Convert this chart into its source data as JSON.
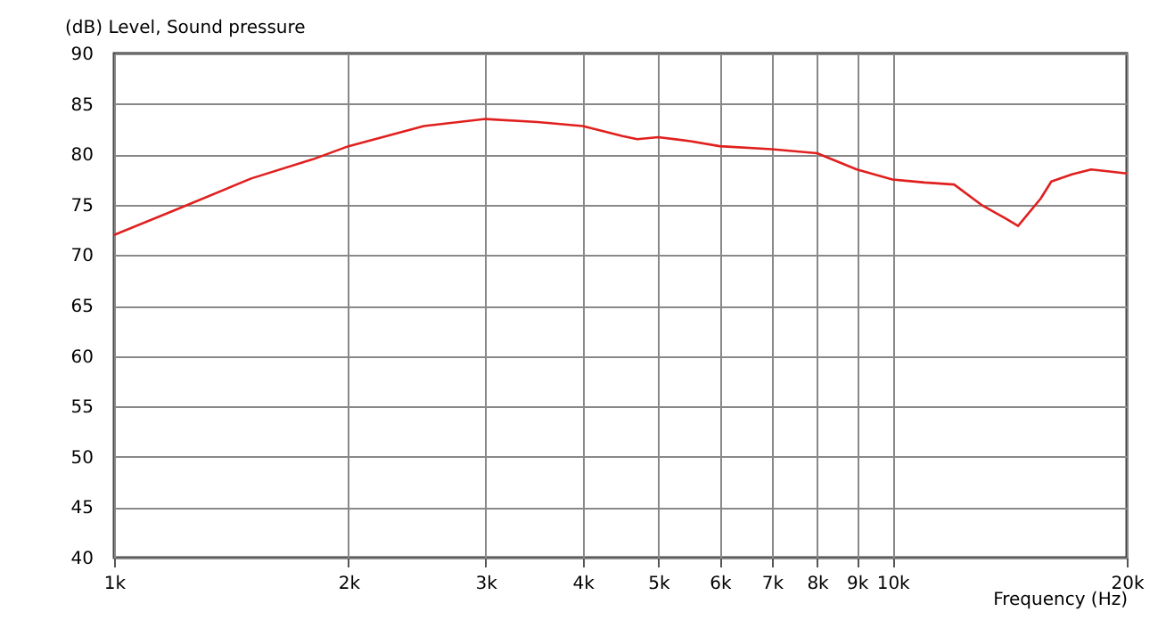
{
  "chart_data": {
    "type": "line",
    "xlabel": "Frequency  (Hz)",
    "ylabel": "(dB)  Level, Sound pressure",
    "x": [
      1000,
      1200,
      1500,
      1800,
      2000,
      2500,
      3000,
      3500,
      4000,
      4500,
      4700,
      5000,
      5500,
      6000,
      7000,
      8000,
      9000,
      10000,
      11000,
      12000,
      13000,
      14000,
      14500,
      15500,
      16000,
      17000,
      18000,
      19000,
      20000
    ],
    "series": [
      {
        "color": "#e0201e",
        "values": [
          72.0,
          74.5,
          77.6,
          79.5,
          80.8,
          82.8,
          83.5,
          83.2,
          82.8,
          81.8,
          81.5,
          81.7,
          81.3,
          80.8,
          80.5,
          80.1,
          78.5,
          77.5,
          77.2,
          77.0,
          75.0,
          73.6,
          72.9,
          75.6,
          77.3,
          78.0,
          78.5,
          78.3,
          78.1
        ]
      }
    ],
    "log": "x",
    "xlim": [
      1000,
      20000
    ],
    "ylim": [
      40,
      90
    ],
    "xticks": [
      {
        "value": 1000,
        "label": "1k"
      },
      {
        "value": 2000,
        "label": "2k"
      },
      {
        "value": 3000,
        "label": "3k"
      },
      {
        "value": 4000,
        "label": "4k"
      },
      {
        "value": 5000,
        "label": "5k"
      },
      {
        "value": 6000,
        "label": "6k"
      },
      {
        "value": 7000,
        "label": "7k"
      },
      {
        "value": 8000,
        "label": "8k"
      },
      {
        "value": 9000,
        "label": "9k"
      },
      {
        "value": 10000,
        "label": "10k"
      },
      {
        "value": 20000,
        "label": "20k"
      }
    ],
    "yticks": [
      40,
      45,
      50,
      55,
      60,
      65,
      70,
      75,
      80,
      85,
      90
    ],
    "grid": true,
    "marker": "none",
    "line_style": "solid"
  }
}
